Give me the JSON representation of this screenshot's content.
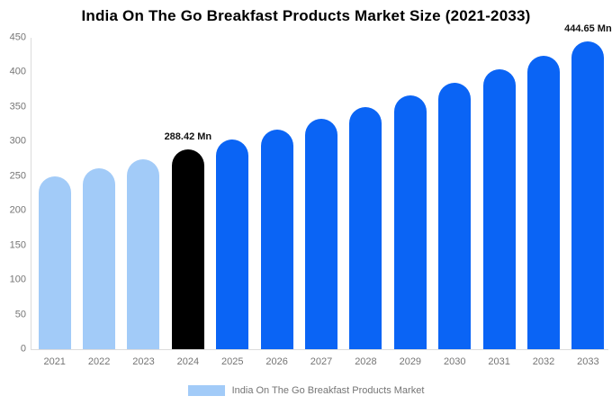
{
  "title": "India On The Go Breakfast Products Market Size (2021-2033)",
  "legend": {
    "label": "India On The Go Breakfast Products Market"
  },
  "colors": {
    "bar_light": "#A2CBF8",
    "bar_primary": "#0A64F5",
    "bar_highlight": "#000000",
    "axis_line": "#DCDCDC",
    "axis_text": "#757575",
    "annotation_text": "#111111",
    "title_text": "#000000",
    "background": "#FFFFFF"
  },
  "chart_data": {
    "type": "bar",
    "title": "India On The Go Breakfast Products Market Size (2021-2033)",
    "unit": "Mn",
    "categories": [
      "2021",
      "2022",
      "2023",
      "2024",
      "2025",
      "2026",
      "2027",
      "2028",
      "2029",
      "2030",
      "2031",
      "2032",
      "2033"
    ],
    "series": [
      {
        "name": "India On The Go Breakfast Products Market",
        "values": [
          249.65,
          261.96,
          274.88,
          288.42,
          302.64,
          317.56,
          333.22,
          349.65,
          366.89,
          384.98,
          403.96,
          423.88,
          444.65
        ]
      }
    ],
    "bar_color_keys": [
      "bar_light",
      "bar_light",
      "bar_light",
      "bar_highlight",
      "bar_primary",
      "bar_primary",
      "bar_primary",
      "bar_primary",
      "bar_primary",
      "bar_primary",
      "bar_primary",
      "bar_primary",
      "bar_primary"
    ],
    "ylim": [
      0,
      450
    ],
    "ytick_interval": 50,
    "grid": false,
    "legend_position": "bottom",
    "annotations": [
      {
        "category": "2024",
        "text": "288.42 Mn"
      },
      {
        "category": "2033",
        "text": "444.65 Mn"
      }
    ]
  }
}
